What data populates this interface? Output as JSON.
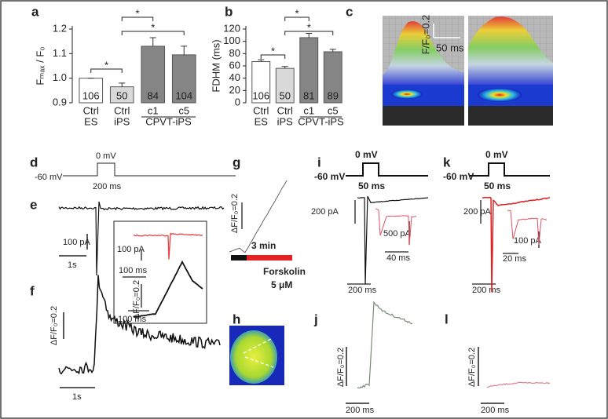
{
  "chart_data": [
    {
      "type": "bar",
      "panel": "a",
      "ylabel": "Fₘₐₓ / F₀",
      "categories": [
        "Ctrl",
        "Ctrl",
        "c1",
        "c5"
      ],
      "groups": [
        "ES",
        "iPS",
        "CPVT-iPS"
      ],
      "values": [
        1.0,
        0.965,
        1.13,
        1.095
      ],
      "errors": [
        0,
        0.015,
        0.035,
        0.035
      ],
      "counts": [
        106,
        50,
        84,
        104
      ],
      "colors": [
        "#ffffff",
        "#d9d9d9",
        "#858585",
        "#858585"
      ],
      "ylim": [
        0.9,
        1.2
      ],
      "yticks": [
        0.9,
        {
          "value": 1,
          "label": "1.0"
        },
        1.1,
        1.2
      ],
      "annotations": [
        "*",
        "*",
        "*"
      ]
    },
    {
      "type": "bar",
      "panel": "b",
      "ylabel": "FDHM (ms)",
      "categories": [
        "Ctrl",
        "Ctrl",
        "c1",
        "c5"
      ],
      "groups": [
        "ES",
        "iPS",
        "CPVT-iPS"
      ],
      "values": [
        67,
        56,
        106,
        83
      ],
      "errors": [
        3,
        3,
        7,
        4
      ],
      "counts": [
        106,
        50,
        81,
        89
      ],
      "colors": [
        "#ffffff",
        "#d9d9d9",
        "#858585",
        "#858585"
      ],
      "ylim": [
        0,
        120
      ],
      "yticks": [
        0,
        20,
        40,
        60,
        80,
        100,
        120
      ],
      "annotations": [
        "*",
        "*",
        "*"
      ]
    }
  ],
  "panels": {
    "c": {
      "label": "c",
      "scale_y": "F/F₀=0.2",
      "scale_x": "50 ms"
    },
    "d": {
      "label": "d",
      "step": "0 mV",
      "hold": "-60 mV",
      "duration": "200 ms"
    },
    "e": {
      "label": "e",
      "scale_y": "100 pA",
      "scale_x": "1s",
      "inset_current": "100 pA",
      "inset_time": "100 ms",
      "inset_fluo": "ΔF/F₀=0.2",
      "inset_time2": "100 ms"
    },
    "f": {
      "label": "f",
      "scale_y": "ΔF/F₀=0.2",
      "scale_x": "1s"
    },
    "g": {
      "label": "g",
      "scale_y": "ΔF/F₀=0.2",
      "scale_x": "3 min",
      "drug": "Forskolin",
      "dose": "5 μM"
    },
    "h": {
      "label": "h"
    },
    "i": {
      "label": "i",
      "step": "0 mV",
      "hold": "-60 mV",
      "duration": "50 ms",
      "scale_y": "200 pA",
      "inset_y": "500 pA",
      "inset_x": "40 ms",
      "scale_x": "200 ms"
    },
    "j": {
      "label": "j",
      "scale_y": "ΔF/F₀=0.2",
      "scale_x": "200 ms"
    },
    "k": {
      "label": "k",
      "step": "0 mV",
      "hold": "-60 mV",
      "duration": "50 ms",
      "scale_y": "200 pA",
      "inset_y": "100 pA",
      "inset_x": "20 ms",
      "scale_x": "200 ms"
    },
    "l": {
      "label": "l",
      "scale_y": "ΔF/F₀=0.2",
      "scale_x": "200 ms"
    }
  }
}
